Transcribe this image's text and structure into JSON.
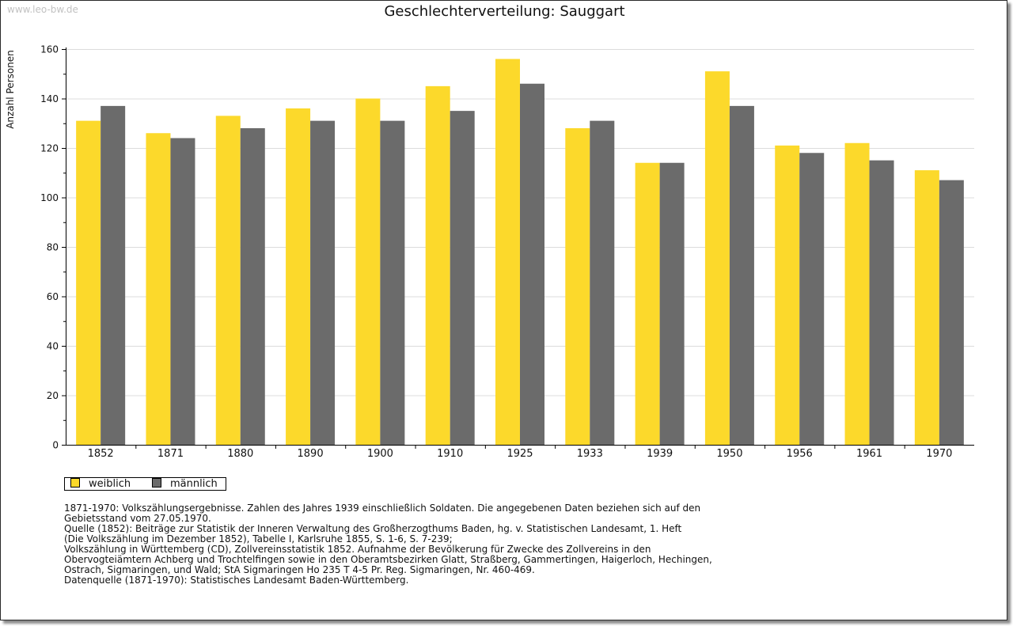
{
  "watermark": "www.leo-bw.de",
  "chart_data": {
    "type": "bar",
    "title": "Geschlechterverteilung: Sauggart",
    "xlabel": "",
    "ylabel": "Anzahl Personen",
    "ylim": [
      0,
      160
    ],
    "yticks": [
      0,
      20,
      40,
      60,
      80,
      100,
      120,
      140,
      160
    ],
    "grid": true,
    "legend_position": "bottom-left",
    "categories": [
      "1852",
      "1871",
      "1880",
      "1890",
      "1900",
      "1910",
      "1925",
      "1933",
      "1939",
      "1950",
      "1956",
      "1961",
      "1970"
    ],
    "series": [
      {
        "name": "weiblich",
        "color": "#fcd92b",
        "values": [
          131,
          126,
          133,
          136,
          140,
          145,
          156,
          128,
          114,
          151,
          121,
          122,
          111
        ]
      },
      {
        "name": "männlich",
        "color": "#6b6b6b",
        "values": [
          137,
          124,
          128,
          131,
          131,
          135,
          146,
          131,
          114,
          137,
          118,
          115,
          107
        ]
      }
    ]
  },
  "notes": [
    "1871-1970: Volkszählungsergebnisse. Zahlen des Jahres 1939 einschließlich Soldaten. Die angegebenen Daten beziehen sich auf den",
    "Gebietsstand vom 27.05.1970.",
    "Quelle (1852): Beiträge zur Statistik der Inneren Verwaltung des Großherzogthums Baden, hg. v. Statistischen Landesamt, 1. Heft",
    "(Die Volkszählung im Dezember 1852), Tabelle I, Karlsruhe 1855, S. 1-6, S. 7-239;",
    "Volkszählung in Württemberg (CD), Zollvereinsstatistik 1852. Aufnahme der Bevölkerung für Zwecke des Zollvereins in den",
    "Obervogteiämtern Achberg und Trochtelfingen sowie in den Oberamtsbezirken Glatt, Straßberg, Gammertingen, Haigerloch, Hechingen,",
    "Ostrach, Sigmaringen, und Wald; StA Sigmaringen Ho 235 T 4-5 Pr. Reg. Sigmaringen, Nr. 460-469.",
    "",
    "Datenquelle (1871-1970): Statistisches Landesamt Baden-Württemberg."
  ]
}
